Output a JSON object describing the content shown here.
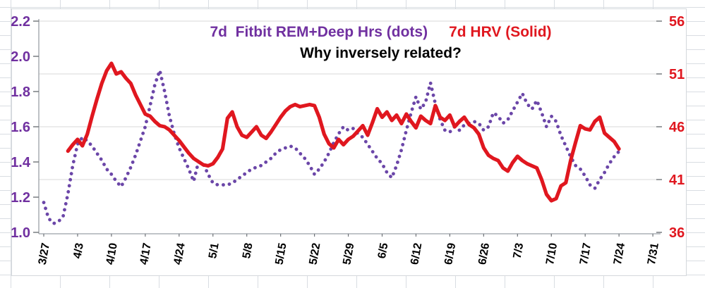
{
  "titles": {
    "series1_label": "7d  Fitbit REM+Deep Hrs (dots)",
    "series2_label": "7d HRV (Solid)",
    "subtitle": "Why inversely related?"
  },
  "colors": {
    "purple_text": "#7030A0",
    "purple_dots": "#6B46A8",
    "red": "#E0171F",
    "gridline": "#DADADA",
    "axis_line": "#9BA0A6",
    "tick": "#6E7378",
    "x_label": "#000000",
    "sheet_grid": "#D9DDE2",
    "background": "#FFFFFF"
  },
  "chart_data": {
    "type": "line",
    "title": "7d  Fitbit REM+Deep Hrs (dots)   7d HRV (Solid)",
    "subtitle": "Why inversely related?",
    "grid": "horizontal gridlines at secondary-axis ticks",
    "legend_position": "in-title",
    "left_axis": {
      "label": "REM+Deep Hrs",
      "min": 1.0,
      "max": 2.2,
      "ticks": [
        1.0,
        1.2,
        1.4,
        1.6,
        1.8,
        2.0,
        2.2
      ],
      "color": "#7030A0"
    },
    "right_axis": {
      "label": "HRV",
      "min": 36,
      "max": 56,
      "ticks": [
        36,
        41,
        46,
        51,
        56
      ],
      "color": "#E0171F"
    },
    "x_tick_labels": [
      "3/27",
      "4/3",
      "4/10",
      "4/17",
      "4/24",
      "5/1",
      "5/8",
      "5/15",
      "5/22",
      "5/29",
      "6/5",
      "6/12",
      "6/19",
      "6/26",
      "7/3",
      "7/10",
      "7/17",
      "7/24",
      "7/31"
    ],
    "x": [
      "3/27",
      "3/28",
      "3/29",
      "3/30",
      "3/31",
      "4/1",
      "4/2",
      "4/3",
      "4/4",
      "4/5",
      "4/6",
      "4/7",
      "4/8",
      "4/9",
      "4/10",
      "4/11",
      "4/12",
      "4/13",
      "4/14",
      "4/15",
      "4/16",
      "4/17",
      "4/18",
      "4/19",
      "4/20",
      "4/21",
      "4/22",
      "4/23",
      "4/24",
      "4/25",
      "4/26",
      "4/27",
      "4/28",
      "4/29",
      "4/30",
      "5/1",
      "5/2",
      "5/3",
      "5/4",
      "5/5",
      "5/6",
      "5/7",
      "5/8",
      "5/9",
      "5/10",
      "5/11",
      "5/12",
      "5/13",
      "5/14",
      "5/15",
      "5/16",
      "5/17",
      "5/18",
      "5/19",
      "5/20",
      "5/21",
      "5/22",
      "5/23",
      "5/24",
      "5/25",
      "5/26",
      "5/27",
      "5/28",
      "5/29",
      "5/30",
      "5/31",
      "6/1",
      "6/2",
      "6/3",
      "6/4",
      "6/5",
      "6/6",
      "6/7",
      "6/8",
      "6/9",
      "6/10",
      "6/11",
      "6/12",
      "6/13",
      "6/14",
      "6/15",
      "6/16",
      "6/17",
      "6/18",
      "6/19",
      "6/20",
      "6/21",
      "6/22",
      "6/23",
      "6/24",
      "6/25",
      "6/26",
      "6/27",
      "6/28",
      "6/29",
      "6/30",
      "7/1",
      "7/2",
      "7/3",
      "7/4",
      "7/5",
      "7/6",
      "7/7",
      "7/8",
      "7/9",
      "7/10",
      "7/11",
      "7/12",
      "7/13",
      "7/14",
      "7/15",
      "7/16",
      "7/17",
      "7/18",
      "7/19",
      "7/20",
      "7/21",
      "7/22",
      "7/23",
      "7/24"
    ],
    "series": [
      {
        "name": "7d Fitbit REM+Deep Hrs",
        "style": "dotted",
        "axis": "left",
        "color": "#6B46A8",
        "values": [
          1.17,
          1.08,
          1.05,
          1.06,
          1.09,
          1.22,
          1.38,
          1.5,
          1.54,
          1.52,
          1.49,
          1.45,
          1.41,
          1.36,
          1.33,
          1.29,
          1.26,
          1.31,
          1.37,
          1.44,
          1.52,
          1.6,
          1.72,
          1.84,
          1.92,
          1.8,
          1.66,
          1.56,
          1.48,
          1.42,
          1.36,
          1.29,
          1.4,
          1.39,
          1.33,
          1.28,
          1.27,
          1.27,
          1.27,
          1.28,
          1.3,
          1.32,
          1.34,
          1.36,
          1.37,
          1.38,
          1.4,
          1.42,
          1.45,
          1.47,
          1.48,
          1.49,
          1.48,
          1.45,
          1.42,
          1.38,
          1.33,
          1.36,
          1.4,
          1.45,
          1.51,
          1.56,
          1.6,
          1.58,
          1.59,
          1.56,
          1.54,
          1.5,
          1.46,
          1.42,
          1.39,
          1.34,
          1.31,
          1.38,
          1.47,
          1.58,
          1.68,
          1.77,
          1.7,
          1.74,
          1.85,
          1.73,
          1.64,
          1.58,
          1.57,
          1.6,
          1.58,
          1.61,
          1.62,
          1.63,
          1.62,
          1.58,
          1.6,
          1.68,
          1.66,
          1.62,
          1.64,
          1.69,
          1.74,
          1.79,
          1.73,
          1.7,
          1.75,
          1.68,
          1.6,
          1.66,
          1.63,
          1.55,
          1.49,
          1.43,
          1.38,
          1.36,
          1.32,
          1.27,
          1.25,
          1.3,
          1.34,
          1.39,
          1.43,
          1.46
        ]
      },
      {
        "name": "7d HRV",
        "style": "solid",
        "axis": "right",
        "color": "#E0171F",
        "values": [
          null,
          null,
          null,
          null,
          null,
          43.7,
          44.3,
          44.8,
          44.2,
          45.3,
          47.0,
          48.6,
          50.1,
          51.3,
          52.0,
          51.0,
          51.2,
          50.6,
          50.1,
          49.0,
          48.1,
          47.2,
          47.0,
          46.5,
          46.1,
          46.0,
          45.7,
          45.2,
          44.7,
          44.1,
          43.5,
          43.0,
          42.7,
          42.4,
          42.3,
          42.5,
          43.1,
          43.9,
          46.8,
          47.4,
          46.0,
          45.2,
          45.0,
          45.5,
          46.0,
          45.2,
          44.9,
          45.5,
          46.2,
          46.9,
          47.5,
          47.9,
          48.1,
          47.9,
          48.0,
          48.1,
          48.0,
          46.9,
          45.3,
          44.4,
          44.0,
          44.8,
          44.3,
          44.8,
          45.1,
          45.6,
          46.1,
          45.2,
          46.4,
          47.7,
          46.9,
          47.4,
          46.6,
          47.1,
          46.3,
          47.2,
          46.5,
          45.9,
          47.0,
          46.6,
          46.3,
          48.0,
          46.9,
          46.6,
          47.1,
          46.0,
          46.5,
          46.9,
          46.2,
          45.9,
          45.3,
          44.0,
          43.3,
          43.0,
          42.8,
          42.1,
          41.8,
          42.6,
          43.2,
          42.8,
          42.5,
          42.3,
          42.1,
          41.0,
          39.6,
          39.0,
          39.2,
          40.4,
          40.7,
          42.8,
          44.5,
          46.1,
          45.8,
          45.7,
          46.5,
          46.9,
          45.4,
          45.0,
          44.6,
          43.9
        ]
      }
    ]
  }
}
